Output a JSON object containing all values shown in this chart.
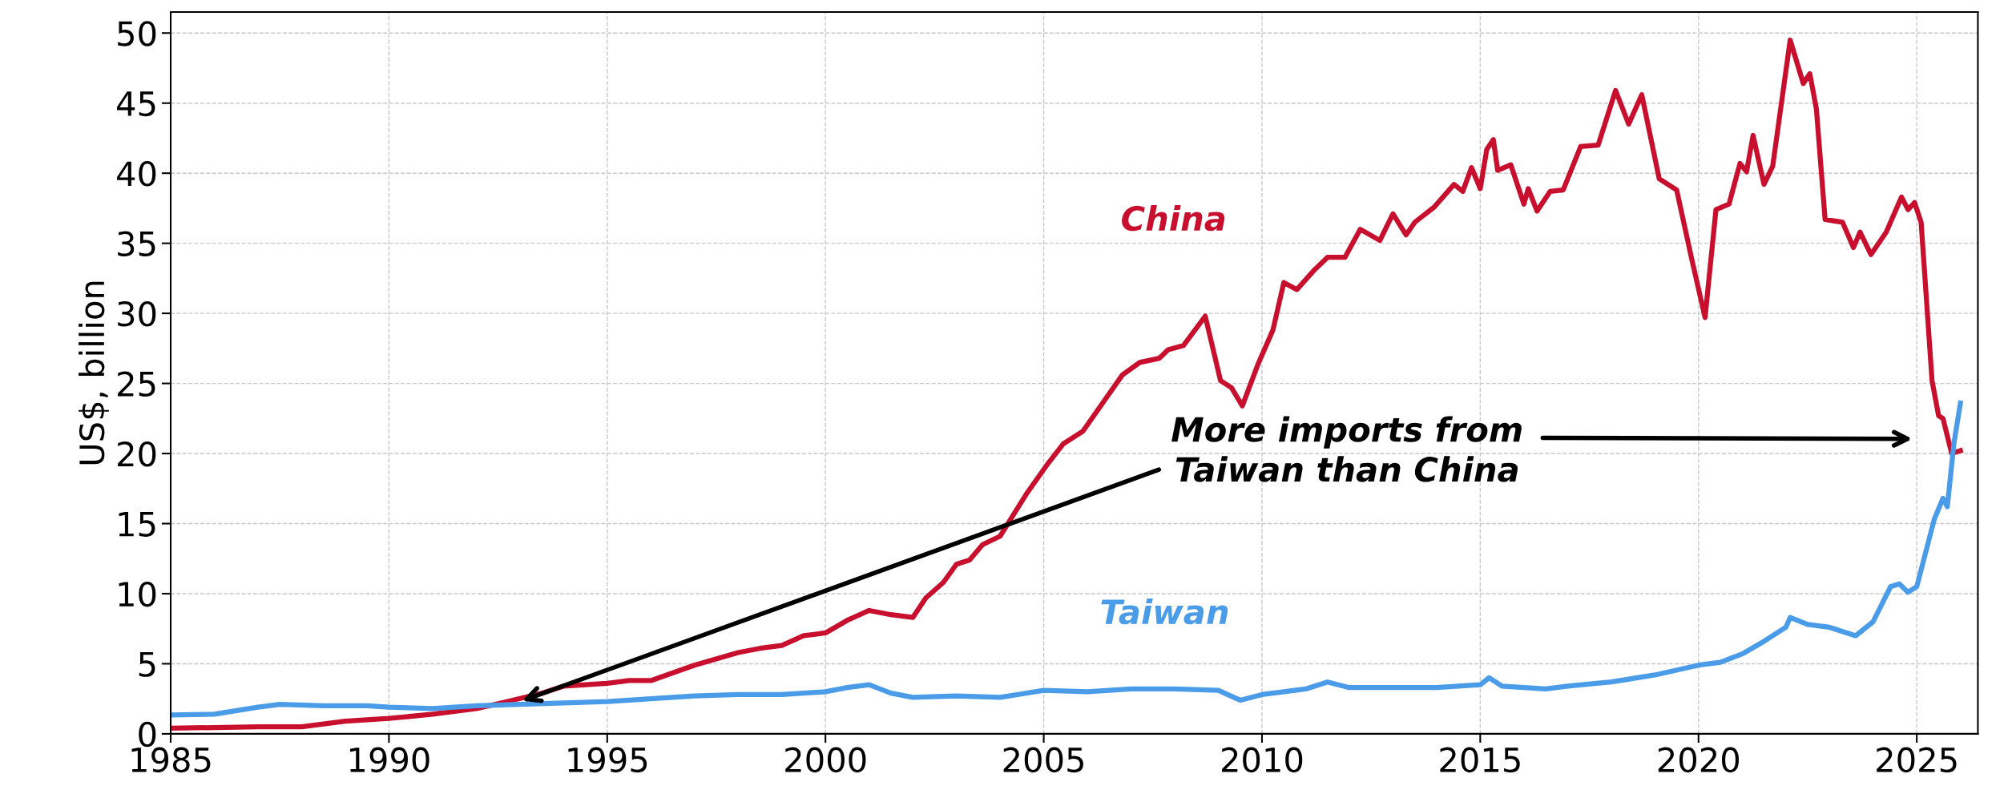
{
  "chart_data": {
    "type": "line",
    "ylabel": "US$, billion",
    "xlim": [
      1985,
      2026.4
    ],
    "xticks": [
      1985,
      1990,
      1995,
      2000,
      2005,
      2010,
      2015,
      2020,
      2025
    ],
    "ylim": [
      0,
      51.5
    ],
    "yticks": [
      0,
      5,
      10,
      15,
      20,
      25,
      30,
      35,
      40,
      45,
      50
    ],
    "grid": true,
    "legend": false,
    "line_style": "solid",
    "marker": "none",
    "annotations": [
      {
        "text": "More imports from\nTaiwan than China",
        "x": 1993.0,
        "y": 2.3
      }
    ],
    "series": [
      {
        "name": "China",
        "color": "#c8102e",
        "x": [
          1985,
          1987,
          1988,
          1989,
          1990,
          1991,
          1992,
          1992.7,
          1993.5,
          1994,
          1995,
          1995.5,
          1996,
          1997,
          1998,
          1998.5,
          1999,
          1999.5,
          2000,
          2000.5,
          2001,
          2001.5,
          2002,
          2002.3,
          2002.7,
          2003,
          2003.3,
          2003.6,
          2004.0,
          2004.6,
          2005.1,
          2005.45,
          2005.9,
          2006.35,
          2006.8,
          2007.2,
          2007.65,
          2007.85,
          2008.2,
          2008.7,
          2009.05,
          2009.3,
          2009.55,
          2009.9,
          2010.25,
          2010.5,
          2010.8,
          2011.2,
          2011.5,
          2011.9,
          2012.25,
          2012.7,
          2013.0,
          2013.3,
          2013.5,
          2013.95,
          2014.4,
          2014.6,
          2014.8,
          2015.0,
          2015.15,
          2015.3,
          2015.4,
          2015.7,
          2016.0,
          2016.1,
          2016.3,
          2016.6,
          2016.9,
          2017.3,
          2017.7,
          2018.1,
          2018.4,
          2018.7,
          2019.1,
          2019.5,
          2019.85,
          2020.15,
          2020.4,
          2020.7,
          2020.95,
          2021.1,
          2021.25,
          2021.5,
          2021.7,
          2022.1,
          2022.4,
          2022.55,
          2022.7,
          2022.9,
          2023.3,
          2023.55,
          2023.7,
          2023.95,
          2024.3,
          2024.65,
          2024.8,
          2024.95,
          2025.1,
          2025.35,
          2025.5,
          2025.6,
          2025.8,
          2026.0
        ],
        "values": [
          0.4,
          0.5,
          0.5,
          0.9,
          1.1,
          1.4,
          1.8,
          2.3,
          2.9,
          3.4,
          3.6,
          3.8,
          3.8,
          4.9,
          5.8,
          6.1,
          6.3,
          7.0,
          7.2,
          8.1,
          8.8,
          8.5,
          8.3,
          9.7,
          10.8,
          12.1,
          12.4,
          13.5,
          14.1,
          17.1,
          19.3,
          20.7,
          21.6,
          23.6,
          25.6,
          26.5,
          26.8,
          27.4,
          27.7,
          29.8,
          25.2,
          24.7,
          23.4,
          26.3,
          28.8,
          32.2,
          31.7,
          33.1,
          34.0,
          34.0,
          36.0,
          35.2,
          37.1,
          35.6,
          36.5,
          37.6,
          39.2,
          38.7,
          40.4,
          38.9,
          41.7,
          42.4,
          40.2,
          40.6,
          37.8,
          38.9,
          37.3,
          38.7,
          38.8,
          41.9,
          42.0,
          45.9,
          43.5,
          45.6,
          39.6,
          38.8,
          33.8,
          29.7,
          37.4,
          37.8,
          40.7,
          40.1,
          42.7,
          39.2,
          40.5,
          49.5,
          46.4,
          47.1,
          44.6,
          36.7,
          36.5,
          34.7,
          35.8,
          34.2,
          35.8,
          38.3,
          37.4,
          37.9,
          36.5,
          25.2,
          22.7,
          22.5,
          20.0,
          20.2
        ]
      },
      {
        "name": "Taiwan",
        "color": "#4a9be8",
        "x": [
          1985,
          1986,
          1987,
          1987.5,
          1988.5,
          1989.5,
          1990,
          1991,
          1992,
          1993,
          1994,
          1995,
          1996,
          1997,
          1998,
          1999,
          2000,
          2000.5,
          2001,
          2001.5,
          2002,
          2003,
          2004,
          2005,
          2006,
          2007,
          2008,
          2009,
          2009.5,
          2010,
          2011,
          2011.5,
          2012,
          2013,
          2014,
          2015,
          2015.2,
          2015.5,
          2016.5,
          2017,
          2018,
          2019,
          2020,
          2020.5,
          2021,
          2021.5,
          2022,
          2022.1,
          2022.5,
          2023,
          2023.6,
          2024,
          2024.4,
          2024.6,
          2024.8,
          2025,
          2025.4,
          2025.6,
          2025.7,
          2025.85,
          2026.0
        ],
        "values": [
          1.35,
          1.4,
          1.9,
          2.1,
          2.0,
          2.0,
          1.9,
          1.8,
          2.0,
          2.1,
          2.2,
          2.3,
          2.5,
          2.7,
          2.8,
          2.8,
          3.0,
          3.3,
          3.5,
          2.9,
          2.6,
          2.7,
          2.6,
          3.1,
          3.0,
          3.2,
          3.2,
          3.1,
          2.4,
          2.8,
          3.2,
          3.7,
          3.3,
          3.3,
          3.3,
          3.5,
          4.0,
          3.4,
          3.2,
          3.4,
          3.7,
          4.2,
          4.9,
          5.1,
          5.7,
          6.6,
          7.6,
          8.3,
          7.8,
          7.6,
          7.0,
          8.0,
          10.5,
          10.7,
          10.1,
          10.5,
          15.3,
          16.8,
          16.2,
          20.7,
          23.6
        ]
      }
    ]
  }
}
